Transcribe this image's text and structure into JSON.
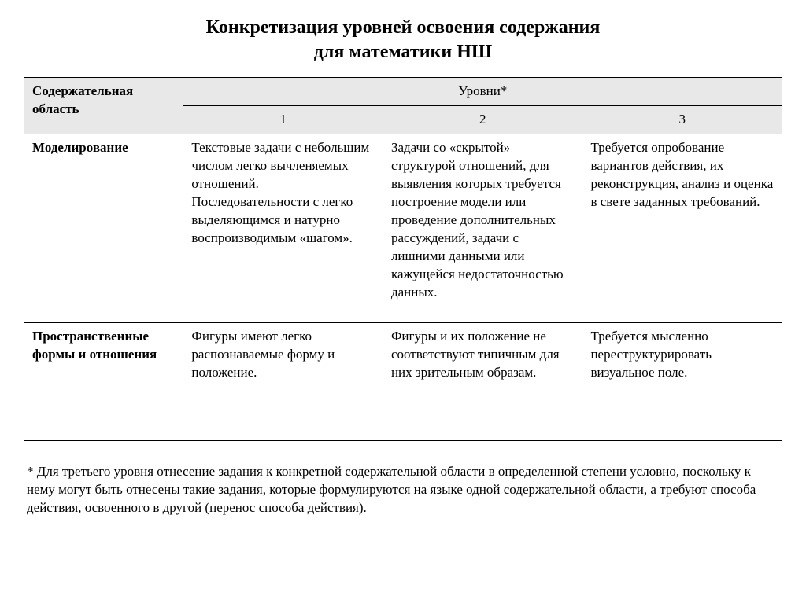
{
  "title_line1": "Конкретизация уровней освоения содержания",
  "title_line2": "для математики НШ",
  "table": {
    "header": {
      "area": "Содержательная область",
      "levels_label": "Уровни*",
      "level_nums": [
        "1",
        "2",
        "3"
      ]
    },
    "rows": [
      {
        "area": "Моделирование",
        "level1": "Текстовые задачи с небольшим числом легко вычленяемых отношений. Последовательности с легко выделяющимся и натурно воспроизводимым «шагом».",
        "level2": "Задачи со «скрытой» структурой отношений, для выявления которых требуется построение модели или проведение дополнительных рассуждений, задачи с лишними данными или кажущейся недостаточностью данных.",
        "level3": "Требуется опробование вариантов действия, их реконструкция, анализ и оценка в свете заданных требований."
      },
      {
        "area": "Пространственные формы и отношения",
        "level1": "Фигуры имеют легко распознаваемые форму и положение.",
        "level2": "Фигуры и их положение не соответствуют типичным для них зрительным образам.",
        "level3": "Требуется мысленно переструктурировать визуальное поле."
      }
    ]
  },
  "footnote": "* Для третьего уровня отнесение задания к конкретной содержательной области в определенной степени  условно, поскольку к нему могут быть  отнесены такие задания, которые формулируются на языке одной содержательной области, а требуют способа действия, освоенного в другой (перенос способа действия).",
  "colors": {
    "background": "#ffffff",
    "text": "#000000",
    "header_bg": "#e8e8e8",
    "border": "#000000"
  },
  "typography": {
    "title_fontsize": 24,
    "body_fontsize": 17,
    "font_family": "Times New Roman"
  }
}
